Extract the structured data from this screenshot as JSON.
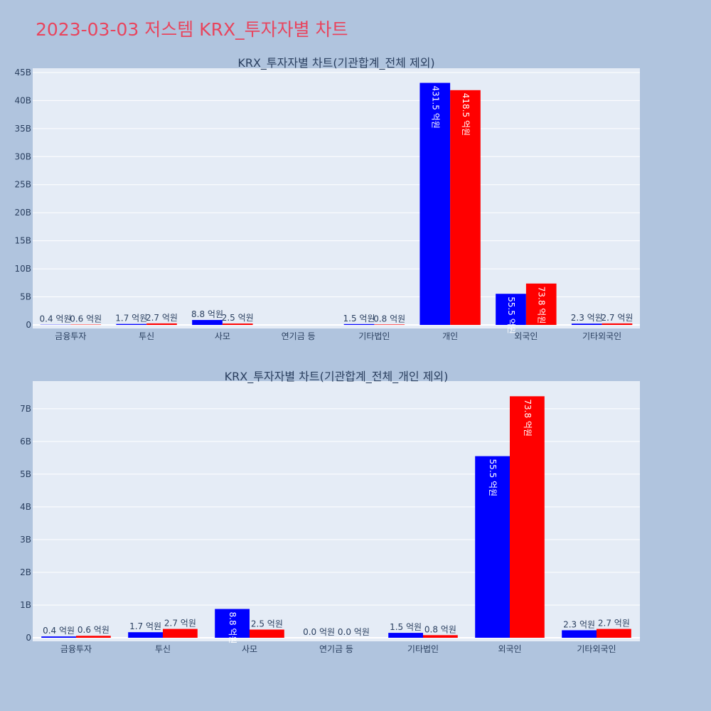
{
  "title": "2023-03-03 저스템 KRX_투자자별 차트",
  "chart_data": [
    {
      "type": "bar",
      "title": "KRX_투자자별 차트(기관합계_전체 제외)",
      "categories": [
        "금융투자",
        "투신",
        "사모",
        "연기금 등",
        "기타법인",
        "개인",
        "외국인",
        "기타외국인"
      ],
      "series": [
        {
          "color": "#0000ff",
          "values": [
            40000000,
            170000000,
            880000000,
            null,
            150000000,
            43150000000,
            5550000000,
            230000000
          ],
          "labels": [
            "0.4 억원",
            "1.7 억원",
            "8.8 억원",
            "",
            "1.5 억원",
            "431.5 억원",
            "55.5 억원",
            "2.3 억원"
          ]
        },
        {
          "color": "#ff0000",
          "values": [
            60000000,
            270000000,
            250000000,
            null,
            80000000,
            41850000000,
            7380000000,
            270000000
          ],
          "labels": [
            "0.6 억원",
            "2.7 억원",
            "2.5 억원",
            "",
            "0.8 억원",
            "418.5 억원",
            "73.8 억원",
            "2.7 억원"
          ]
        }
      ],
      "ylim": [
        0,
        45500000000
      ],
      "yticks": [
        0,
        5000000000,
        10000000000,
        15000000000,
        20000000000,
        25000000000,
        30000000000,
        35000000000,
        40000000000,
        45000000000
      ],
      "ytick_labels": [
        "0",
        "5B",
        "10B",
        "15B",
        "20B",
        "25B",
        "30B",
        "35B",
        "40B",
        "45B"
      ],
      "grid": true,
      "legend": "none"
    },
    {
      "type": "bar",
      "title": "KRX_투자자별 차트(기관합계_전체_개인 제외)",
      "categories": [
        "금융투자",
        "투신",
        "사모",
        "연기금 등",
        "기타법인",
        "외국인",
        "기타외국인"
      ],
      "series": [
        {
          "color": "#0000ff",
          "values": [
            40000000,
            170000000,
            880000000,
            0,
            150000000,
            5550000000,
            230000000
          ],
          "labels": [
            "0.4 억원",
            "1.7 억원",
            "8.8 억원",
            "0.0 억원",
            "1.5 억원",
            "55.5 억원",
            "2.3 억원"
          ]
        },
        {
          "color": "#ff0000",
          "values": [
            60000000,
            270000000,
            250000000,
            0,
            80000000,
            7380000000,
            270000000
          ],
          "labels": [
            "0.6 억원",
            "2.7 억원",
            "2.5 억원",
            "0.0 억원",
            "0.8 억원",
            "73.8 억원",
            "2.7 억원"
          ]
        }
      ],
      "ylim": [
        0,
        7800000000
      ],
      "yticks": [
        0,
        1000000000,
        2000000000,
        3000000000,
        4000000000,
        5000000000,
        6000000000,
        7000000000
      ],
      "ytick_labels": [
        "0",
        "1B",
        "2B",
        "3B",
        "4B",
        "5B",
        "6B",
        "7B"
      ],
      "grid": true,
      "legend": "none"
    }
  ]
}
